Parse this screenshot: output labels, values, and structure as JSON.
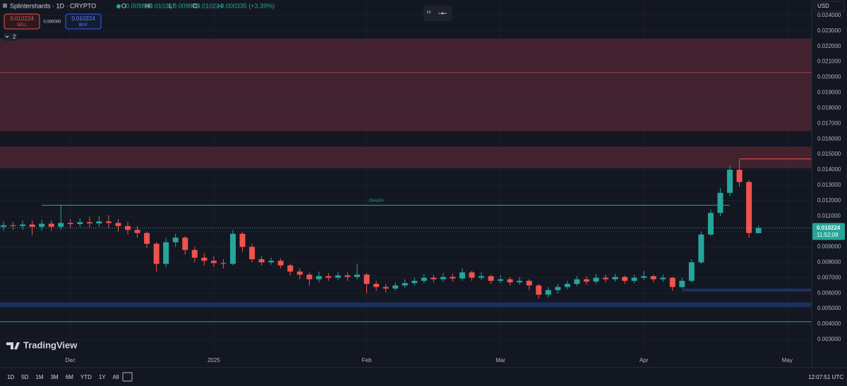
{
  "header": {
    "symbol": "Splintershards · 1D · CRYPTO",
    "ohlc": [
      {
        "key": "O",
        "value": "0.009890"
      },
      {
        "key": "H",
        "value": "0.010367"
      },
      {
        "key": "L",
        "value": "0.009885"
      },
      {
        "key": "C",
        "value": "0.010224"
      }
    ],
    "change": "+0.000335 (+3.39%)",
    "sell_price": "0.010224",
    "sell_label": "SELL",
    "spread": "0.000000",
    "buy_price": "0.010224",
    "buy_label": "BUY",
    "indicators_count": "2",
    "currency": "USD"
  },
  "footer": {
    "brand": "TradingView",
    "timeframes": [
      "1D",
      "5D",
      "1M",
      "3M",
      "6M",
      "YTD",
      "1Y",
      "All"
    ],
    "time": "12:07:51 UTC"
  },
  "chart_data": {
    "type": "candlestick",
    "categories": [
      null,
      null,
      null,
      null,
      null,
      null,
      null,
      "Dec",
      null,
      null,
      null,
      null,
      null,
      null,
      null,
      null,
      null,
      null,
      null,
      null,
      null,
      null,
      "2025",
      null,
      null,
      null,
      null,
      null,
      null,
      null,
      null,
      null,
      null,
      null,
      null,
      null,
      null,
      null,
      "Feb",
      null,
      null,
      null,
      null,
      null,
      null,
      null,
      null,
      null,
      null,
      null,
      null,
      null,
      "Mar",
      null,
      null,
      null,
      null,
      null,
      null,
      null,
      null,
      null,
      null,
      null,
      null,
      null,
      null,
      "Apr",
      null,
      null,
      null,
      null,
      null,
      null,
      null,
      null,
      null,
      null,
      null,
      null,
      null,
      null,
      "May"
    ],
    "open": [
      0.0103,
      0.0104,
      0.01035,
      0.01045,
      0.0103,
      0.0105,
      0.0103,
      0.01055,
      0.01048,
      0.0106,
      0.01052,
      0.01065,
      0.01055,
      0.01035,
      0.0101,
      0.0099,
      0.0092,
      0.0079,
      0.0093,
      0.0096,
      0.0088,
      0.0083,
      0.0081,
      0.00795,
      0.0079,
      0.00985,
      0.009,
      0.0082,
      0.008,
      0.0081,
      0.0078,
      0.0074,
      0.0072,
      0.0069,
      0.0071,
      0.007,
      0.00715,
      0.00705,
      0.0072,
      0.0066,
      0.0064,
      0.0063,
      0.0065,
      0.00665,
      0.0068,
      0.007,
      0.0069,
      0.00705,
      0.00695,
      0.00735,
      0.007,
      0.0071,
      0.0068,
      0.0069,
      0.0067,
      0.0068,
      0.0065,
      0.0059,
      0.0062,
      0.0064,
      0.0066,
      0.0069,
      0.00675,
      0.007,
      0.0069,
      0.00705,
      0.0068,
      0.007,
      0.0071,
      0.0069,
      0.007,
      0.0064,
      0.0068,
      0.008,
      0.0098,
      0.0112,
      0.0125,
      0.014,
      0.0132,
      0.00989,
      null,
      null,
      null
    ],
    "high": [
      0.01065,
      0.0106,
      0.0107,
      0.0107,
      0.01075,
      0.0107,
      0.0117,
      0.0108,
      0.01085,
      0.01095,
      0.011,
      0.01105,
      0.0108,
      0.01065,
      0.01035,
      0.01,
      0.0093,
      0.0096,
      0.00985,
      0.0097,
      0.009,
      0.0086,
      0.0084,
      0.0082,
      0.0101,
      0.00995,
      0.0092,
      0.0084,
      0.0083,
      0.00825,
      0.0079,
      0.0076,
      0.00735,
      0.0074,
      0.0073,
      0.0074,
      0.00735,
      0.0079,
      0.0073,
      0.0068,
      0.0066,
      0.0067,
      0.0069,
      0.007,
      0.00725,
      0.0072,
      0.0073,
      0.00725,
      0.0076,
      0.00745,
      0.00735,
      0.0072,
      0.00715,
      0.00705,
      0.00705,
      0.0069,
      0.0066,
      0.0064,
      0.0066,
      0.0068,
      0.0071,
      0.0071,
      0.00725,
      0.0072,
      0.00725,
      0.00715,
      0.0072,
      0.00745,
      0.0072,
      0.0072,
      0.00705,
      0.007,
      0.0082,
      0.01,
      0.0114,
      0.0128,
      0.0143,
      0.01465,
      0.01335,
      0.010367,
      null,
      null,
      null
    ],
    "low": [
      0.01005,
      0.0101,
      0.0101,
      0.00975,
      0.01005,
      0.01005,
      0.0101,
      0.0102,
      0.0103,
      0.01025,
      0.0103,
      0.0102,
      0.01,
      0.0098,
      0.0096,
      0.0089,
      0.0074,
      0.0077,
      0.009,
      0.0085,
      0.008,
      0.0078,
      0.0077,
      0.0076,
      0.0078,
      0.0087,
      0.008,
      0.0078,
      0.00785,
      0.0076,
      0.00715,
      0.0069,
      0.0065,
      0.0067,
      0.0068,
      0.00685,
      0.0068,
      0.0069,
      0.006,
      0.00615,
      0.00605,
      0.00615,
      0.00635,
      0.0065,
      0.00665,
      0.0067,
      0.00675,
      0.00675,
      0.0068,
      0.0068,
      0.00685,
      0.0066,
      0.00665,
      0.0065,
      0.00655,
      0.0062,
      0.00565,
      0.0057,
      0.006,
      0.00625,
      0.00645,
      0.00655,
      0.0066,
      0.0067,
      0.00675,
      0.0066,
      0.00665,
      0.00685,
      0.0067,
      0.00675,
      0.00615,
      0.0063,
      0.0067,
      0.0079,
      0.0097,
      0.011,
      0.0123,
      0.0129,
      0.0096,
      0.009885,
      null,
      null,
      null
    ],
    "close": [
      0.0104,
      0.01035,
      0.01045,
      0.0103,
      0.0105,
      0.0103,
      0.01055,
      0.01048,
      0.0106,
      0.01052,
      0.01065,
      0.01055,
      0.01035,
      0.0101,
      0.0099,
      0.0092,
      0.0079,
      0.0093,
      0.0096,
      0.0088,
      0.0083,
      0.0081,
      0.00795,
      0.0079,
      0.00985,
      0.009,
      0.0082,
      0.008,
      0.0081,
      0.0078,
      0.0074,
      0.0072,
      0.0069,
      0.0071,
      0.007,
      0.00715,
      0.00705,
      0.0072,
      0.0066,
      0.0064,
      0.0063,
      0.0065,
      0.00665,
      0.0068,
      0.007,
      0.0069,
      0.00705,
      0.00695,
      0.00735,
      0.007,
      0.0071,
      0.0068,
      0.0069,
      0.0067,
      0.0068,
      0.0065,
      0.0059,
      0.0062,
      0.0064,
      0.0066,
      0.0069,
      0.00675,
      0.007,
      0.0069,
      0.00705,
      0.0068,
      0.007,
      0.0071,
      0.0069,
      0.007,
      0.0064,
      0.0068,
      0.008,
      0.0098,
      0.0112,
      0.0125,
      0.014,
      0.0132,
      0.0099,
      0.010224,
      null,
      null,
      null
    ],
    "up_color": "#26a69a",
    "down_color": "#ef5350",
    "ylim": [
      0.00117,
      0.025
    ],
    "yticks": [
      {
        "value": 0.003,
        "label": "0.003000"
      },
      {
        "value": 0.004,
        "label": "0.004000"
      },
      {
        "value": 0.005,
        "label": "0.005000"
      },
      {
        "value": 0.006,
        "label": "0.006000"
      },
      {
        "value": 0.007,
        "label": "0.007000"
      },
      {
        "value": 0.008,
        "label": "0.008000"
      },
      {
        "value": 0.009,
        "label": "0.009000"
      },
      {
        "value": 0.01,
        "label": "0.010000"
      },
      {
        "value": 0.011,
        "label": "0.011000"
      },
      {
        "value": 0.012,
        "label": "0.012000"
      },
      {
        "value": 0.013,
        "label": "0.013000"
      },
      {
        "value": 0.014,
        "label": "0.014000"
      },
      {
        "value": 0.015,
        "label": "0.015000"
      },
      {
        "value": 0.016,
        "label": "0.016000"
      },
      {
        "value": 0.017,
        "label": "0.017000"
      },
      {
        "value": 0.018,
        "label": "0.018000"
      },
      {
        "value": 0.019,
        "label": "0.019000"
      },
      {
        "value": 0.02,
        "label": "0.020000"
      },
      {
        "value": 0.021,
        "label": "0.021000"
      },
      {
        "value": 0.022,
        "label": "0.022000"
      },
      {
        "value": 0.023,
        "label": "0.023000"
      },
      {
        "value": 0.024,
        "label": "0.024000"
      }
    ],
    "grid": true,
    "zones": [
      {
        "from": 0.0165,
        "to": 0.0225,
        "color": "#4a2430"
      },
      {
        "from": 0.0141,
        "to": 0.0155,
        "color": "#4a2430"
      },
      {
        "from": 0.0051,
        "to": 0.0054,
        "color": "#1f3566"
      },
      {
        "from": 0.0061,
        "to": 0.0063,
        "color": "#1f3566",
        "start": 71
      }
    ],
    "lines": [
      {
        "value": 0.0203,
        "color": "#a04a5a"
      },
      {
        "value": 0.00415,
        "color": "#26a69a"
      },
      {
        "value": 0.0117,
        "color": "#26a69a",
        "start": 4,
        "end": 76
      },
      {
        "value": 0.0147,
        "color": "#ef5350",
        "start": 77
      }
    ],
    "annotations": [
      {
        "text": "CHoCH",
        "index": 39,
        "value": 0.012,
        "color": "#26a69a"
      }
    ],
    "last_price": {
      "value": 0.010224,
      "label": "0.010224"
    },
    "countdown": "11:52:08"
  }
}
